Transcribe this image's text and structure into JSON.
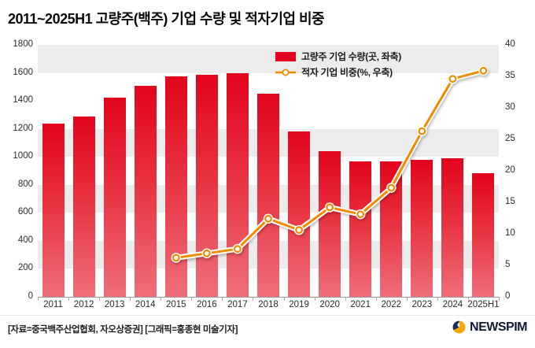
{
  "title": "2011~2025H1 고량주(백주) 기업 수량 및 적자기업 비중",
  "legend": {
    "bar_label": "고량주 기업 수량(곳, 좌축)",
    "line_label": "적자 기업 비중(%, 우축)"
  },
  "footer": {
    "source": "[자료=중국백주산업협회, 자오상증권] [그래픽=홍종현 미술기자]",
    "logo_text": "NEWSPIM"
  },
  "colors": {
    "bar_top": "#e2041c",
    "bar_bottom": "#ee6e79",
    "line": "#f08b00",
    "band_gray": "#ececec",
    "logo_orange": "#f7a600",
    "logo_navy": "#1c2e5e"
  },
  "chart_data": {
    "type": "bar",
    "title": "2011~2025H1 고량주(백주) 기업 수량 및 적자기업 비중",
    "categories": [
      "2011",
      "2012",
      "2013",
      "2014",
      "2015",
      "2016",
      "2017",
      "2018",
      "2019",
      "2020",
      "2021",
      "2022",
      "2023",
      "2024",
      "2025H1"
    ],
    "series": [
      {
        "name": "고량주 기업 수량(곳, 좌축)",
        "type": "bar",
        "axis": "left",
        "values": [
          1235,
          1290,
          1425,
          1505,
          1575,
          1585,
          1595,
          1450,
          1180,
          1040,
          965,
          965,
          980,
          990,
          885
        ]
      },
      {
        "name": "적자 기업 비중(%, 우축)",
        "type": "line",
        "axis": "right",
        "values": [
          null,
          null,
          null,
          null,
          6.2,
          6.9,
          7.6,
          12.4,
          10.6,
          14.2,
          13.1,
          17.3,
          26.3,
          34.6,
          35.9
        ]
      }
    ],
    "left_axis": {
      "ticks": [
        0,
        200,
        400,
        600,
        800,
        1000,
        1200,
        1400,
        1600,
        1800
      ],
      "min": 0,
      "max": 1800
    },
    "right_axis": {
      "ticks": [
        0,
        5,
        10,
        15,
        20,
        25,
        30,
        35,
        40
      ],
      "min": 0,
      "max": 40
    },
    "legend_position": "top-right-inside",
    "grid": "alternating-horizontal-bands"
  }
}
